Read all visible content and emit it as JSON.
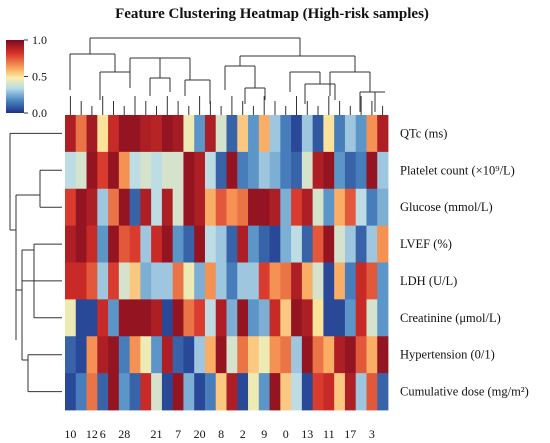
{
  "chart_data": {
    "type": "heatmap",
    "title": "Feature Clustering Heatmap (High-risk samples)",
    "rows": [
      "QTc (ms)",
      "Platelet count (×10⁹/L)",
      "Glucose (mmol/L)",
      "LVEF (%)",
      "LDH (U/L)",
      "Creatinine (μmol/L)",
      "Hypertension (0/1)",
      "Cumulative dose (mg/m²)"
    ],
    "column_tick_labels": [
      "10",
      "12",
      "6",
      "28",
      "21",
      "7",
      "20",
      "8",
      "2",
      "9",
      "0",
      "13",
      "11",
      "17",
      "3"
    ],
    "colorbar": {
      "ticks": [
        "1.0",
        "0.5",
        "0.0"
      ],
      "min": 0.0,
      "max": 1.0,
      "colormap": "RdYlBu_r"
    },
    "n_columns": 30,
    "values": [
      [
        0.9,
        0.7,
        0.92,
        0.5,
        0.85,
        0.95,
        0.95,
        0.9,
        0.88,
        0.95,
        0.92,
        0.45,
        0.2,
        0.9,
        0.4,
        0.1,
        0.55,
        0.2,
        0.6,
        0.3,
        0.15,
        0.05,
        0.3,
        0.08,
        0.5,
        0.15,
        0.3,
        0.2,
        0.65,
        0.9
      ],
      [
        0.35,
        0.4,
        0.95,
        0.8,
        0.95,
        0.65,
        0.35,
        0.4,
        0.35,
        0.4,
        0.4,
        0.95,
        0.9,
        0.35,
        0.1,
        0.95,
        0.15,
        0.2,
        0.3,
        0.25,
        0.15,
        0.1,
        0.4,
        0.9,
        0.95,
        0.2,
        0.1,
        0.15,
        0.95,
        0.3
      ],
      [
        0.8,
        0.95,
        0.9,
        0.3,
        0.7,
        0.95,
        0.1,
        0.9,
        0.35,
        0.9,
        0.4,
        0.95,
        0.9,
        0.6,
        0.75,
        0.65,
        0.7,
        0.95,
        0.95,
        0.9,
        0.25,
        0.8,
        0.9,
        0.4,
        0.2,
        0.6,
        0.75,
        0.35,
        0.15,
        0.25
      ],
      [
        0.9,
        0.95,
        0.85,
        0.2,
        0.95,
        0.75,
        0.8,
        0.3,
        0.85,
        0.95,
        0.2,
        0.1,
        0.95,
        0.35,
        0.3,
        0.1,
        0.9,
        0.2,
        0.1,
        0.05,
        0.25,
        0.35,
        0.1,
        0.75,
        0.95,
        0.4,
        0.3,
        0.1,
        0.3,
        0.65
      ],
      [
        0.85,
        0.85,
        0.75,
        0.3,
        0.8,
        0.4,
        0.55,
        0.25,
        0.3,
        0.3,
        0.7,
        0.45,
        0.25,
        0.65,
        0.3,
        0.15,
        0.3,
        0.3,
        0.8,
        0.65,
        0.7,
        0.9,
        0.6,
        0.4,
        0.05,
        0.6,
        0.15,
        0.85,
        0.75,
        0.2
      ],
      [
        0.45,
        0.05,
        0.05,
        0.85,
        0.2,
        0.95,
        0.95,
        0.95,
        0.9,
        0.05,
        0.95,
        0.7,
        0.8,
        0.35,
        0.9,
        0.25,
        0.95,
        0.2,
        0.25,
        0.85,
        0.55,
        0.95,
        0.9,
        0.5,
        0.05,
        0.05,
        0.2,
        0.85,
        0.4,
        0.2
      ],
      [
        0.1,
        0.05,
        0.65,
        0.9,
        0.95,
        0.15,
        0.65,
        0.45,
        0.2,
        0.9,
        0.1,
        0.05,
        0.3,
        0.6,
        0.95,
        0.4,
        0.7,
        0.55,
        0.45,
        0.65,
        0.7,
        0.3,
        0.95,
        0.7,
        0.6,
        0.9,
        0.95,
        0.75,
        0.6,
        0.95
      ],
      [
        0.05,
        0.15,
        0.7,
        0.1,
        0.95,
        0.2,
        0.1,
        0.85,
        0.4,
        0.05,
        0.95,
        0.25,
        0.05,
        0.15,
        0.55,
        0.9,
        0.05,
        0.45,
        0.2,
        0.95,
        0.55,
        0.35,
        0.05,
        0.8,
        0.85,
        0.55,
        0.9,
        0.3,
        0.75,
        0.1
      ]
    ]
  }
}
